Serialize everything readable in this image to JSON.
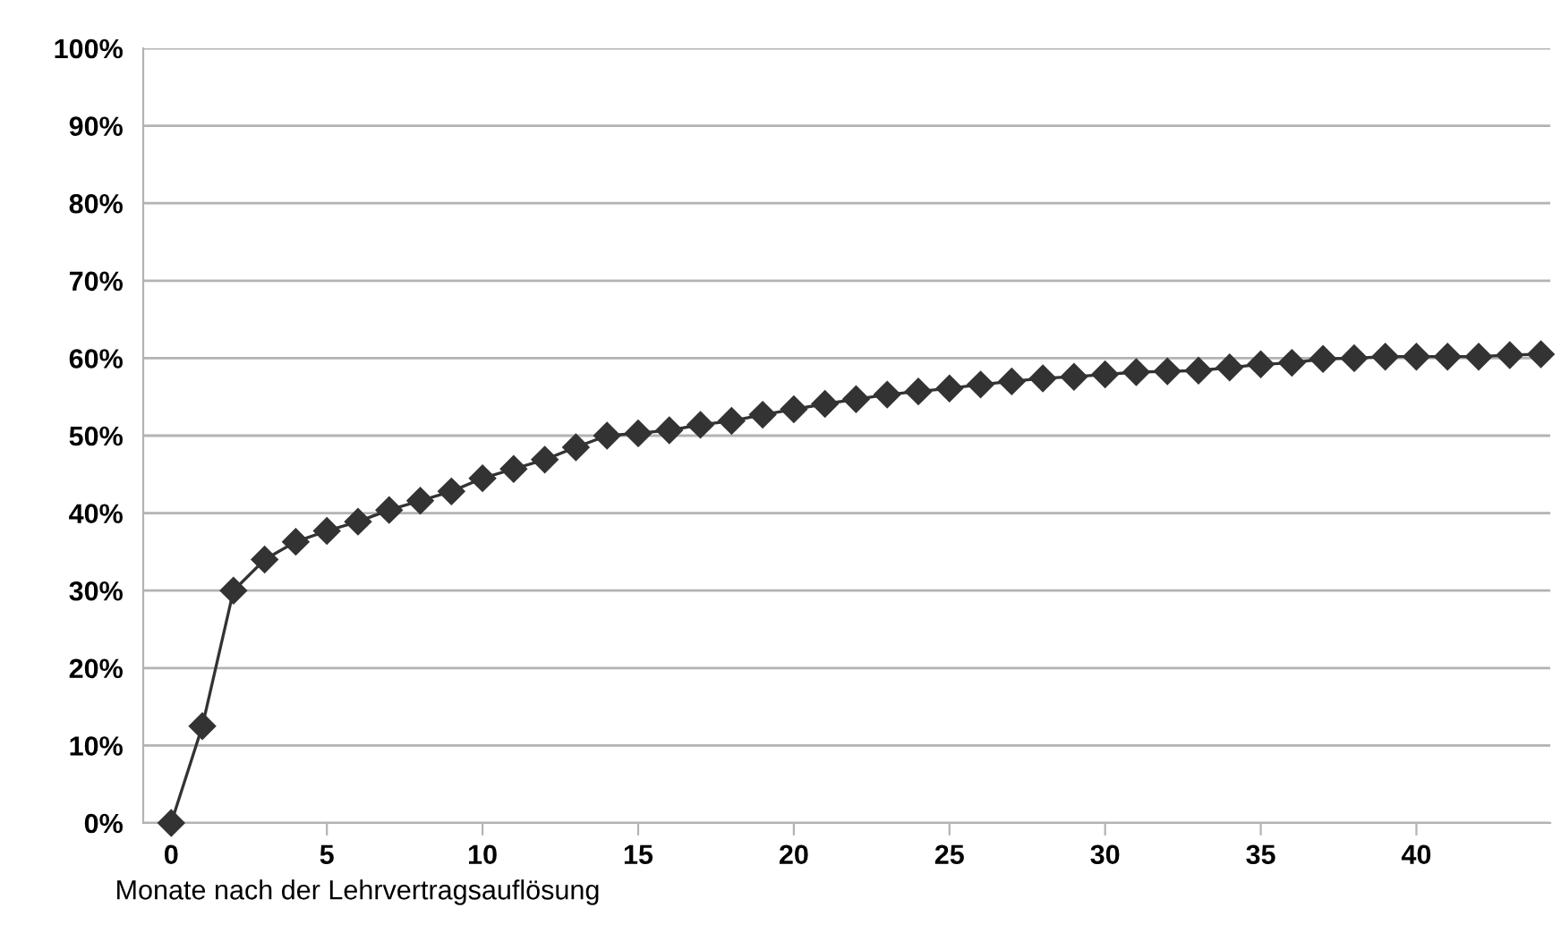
{
  "chart_data": {
    "type": "line",
    "xlabel": "Monate nach der Lehrvertragsauflösung",
    "x": [
      0,
      1,
      2,
      3,
      4,
      5,
      6,
      7,
      8,
      9,
      10,
      11,
      12,
      13,
      14,
      15,
      16,
      17,
      18,
      19,
      20,
      21,
      22,
      23,
      24,
      25,
      26,
      27,
      28,
      29,
      30,
      31,
      32,
      33,
      34,
      35,
      36,
      37,
      38,
      39,
      40,
      41,
      42,
      43,
      44
    ],
    "series": [
      {
        "color": "#333333",
        "values": [
          0,
          12.5,
          30,
          34,
          36.3,
          37.7,
          38.9,
          40.4,
          41.6,
          42.8,
          44.5,
          45.7,
          46.9,
          48.5,
          50,
          50.3,
          50.7,
          51.4,
          51.9,
          52.7,
          53.4,
          54.1,
          54.7,
          55.3,
          55.7,
          56.1,
          56.6,
          57,
          57.4,
          57.6,
          57.9,
          58.2,
          58.3,
          58.4,
          58.8,
          59.2,
          59.4,
          59.9,
          60,
          60.2,
          60.2,
          60.2,
          60.2,
          60.4,
          60.5
        ]
      }
    ],
    "xlim": [
      -0.9,
      44.3
    ],
    "xticks": [
      0,
      5,
      10,
      15,
      20,
      25,
      30,
      35,
      40
    ],
    "ylim": [
      0,
      100
    ],
    "yticks": [
      {
        "value": 0,
        "label": "0%"
      },
      {
        "value": 10,
        "label": "10%"
      },
      {
        "value": 20,
        "label": "20%"
      },
      {
        "value": 30,
        "label": "30%"
      },
      {
        "value": 40,
        "label": "40%"
      },
      {
        "value": 50,
        "label": "50%"
      },
      {
        "value": 60,
        "label": "60%"
      },
      {
        "value": 70,
        "label": "70%"
      },
      {
        "value": 80,
        "label": "80%"
      },
      {
        "value": 90,
        "label": "90%"
      },
      {
        "value": 100,
        "label": "100%"
      }
    ],
    "grid": "y",
    "marker": "diamond",
    "line_style": "solid",
    "legend": false
  }
}
